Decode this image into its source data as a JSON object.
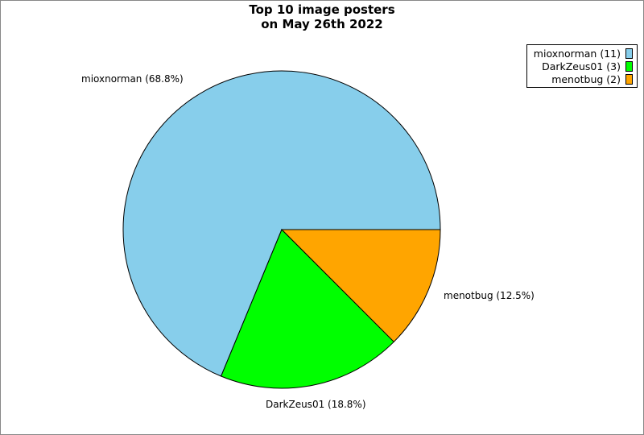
{
  "chart_data": {
    "type": "pie",
    "title": [
      "Top 10 image posters",
      "on May 26th 2022"
    ],
    "slices": [
      {
        "name": "mioxnorman",
        "count": 11,
        "percent": 68.8,
        "label": "mioxnorman (68.8%)",
        "legend": "mioxnorman (11)",
        "color": "#87ceeb"
      },
      {
        "name": "DarkZeus01",
        "count": 3,
        "percent": 18.8,
        "label": "DarkZeus01 (18.8%)",
        "legend": "DarkZeus01 (3)",
        "color": "#00ff00"
      },
      {
        "name": "menotbug",
        "count": 2,
        "percent": 12.5,
        "label": "menotbug (12.5%)",
        "legend": "menotbug (2)",
        "color": "#ffa500"
      }
    ],
    "start_angle": "east, counter-clockwise",
    "legend_position": "top-right"
  }
}
